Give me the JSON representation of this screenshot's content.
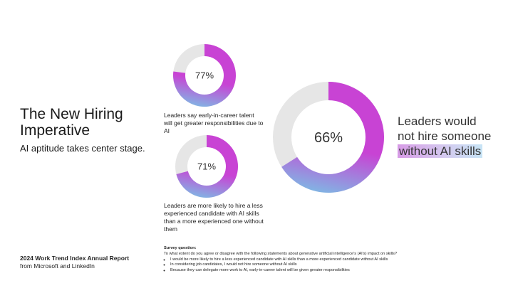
{
  "header": {
    "title": "The New Hiring Imperative",
    "subtitle": "AI aptitude takes center stage."
  },
  "chart_data": [
    {
      "type": "pie",
      "variant": "donut",
      "values": [
        77,
        23
      ],
      "label": "77%",
      "caption": "Leaders say early-in-career talent will get greater responsibilities due to AI"
    },
    {
      "type": "pie",
      "variant": "donut",
      "values": [
        71,
        29
      ],
      "label": "71%",
      "caption": "Leaders are more likely to hire a less experienced candidate with AI skills than a more experienced one without them"
    },
    {
      "type": "pie",
      "variant": "donut",
      "values": [
        66,
        34
      ],
      "label": "66%",
      "caption": ""
    }
  ],
  "callout": {
    "line1": "Leaders would",
    "line2": "not hire someone",
    "highlight": "without AI skills"
  },
  "footer": {
    "report_title": "2024 Work Trend Index Annual Report",
    "report_source": "from Microsoft and LinkedIn",
    "survey_title": "Survey question:",
    "survey_question": "To what extent do you agree or disagree with the following statements about generative artificial intelligence's (AI's) impact on skills?",
    "survey_items": [
      "I would be more likely to hire a less experienced candidate with AI skills than a more experienced candidate without AI skills",
      "In considering job candidates, I would not hire someone without AI skills",
      "Because they can delegate more work to AI, early-in-career talent will be given greater responsibilities"
    ]
  },
  "colors": {
    "ring_start": "#c843d4",
    "ring_end": "#7fb8e4",
    "remainder": "#e6e6e6",
    "hole": "#ffffff"
  }
}
